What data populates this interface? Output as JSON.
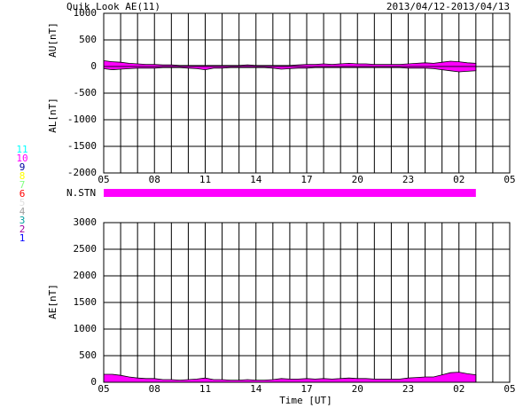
{
  "chart_data": [
    {
      "type": "area",
      "title": "Quik Look AE(11)",
      "date_range": "2013/04/12-2013/04/13",
      "x": [
        0,
        0.5,
        1,
        1.5,
        2,
        2.5,
        3,
        3.5,
        4,
        4.5,
        5,
        5.5,
        6,
        6.5,
        7,
        7.5,
        8,
        8.5,
        9,
        9.5,
        10,
        10.5,
        11,
        11.5,
        12,
        12.5,
        13,
        13.5,
        14,
        14.5,
        15,
        15.5,
        16,
        16.5,
        17,
        17.5,
        18,
        18.5,
        19,
        19.5,
        20,
        20.5,
        21,
        21.5,
        22
      ],
      "xlim": [
        0,
        24
      ],
      "xticks": [
        {
          "value": 0,
          "label": "05"
        },
        {
          "value": 3,
          "label": "08"
        },
        {
          "value": 6,
          "label": "11"
        },
        {
          "value": 9,
          "label": "14"
        },
        {
          "value": 12,
          "label": "17"
        },
        {
          "value": 15,
          "label": "20"
        },
        {
          "value": 18,
          "label": "23"
        },
        {
          "value": 21,
          "label": "02"
        },
        {
          "value": 24,
          "label": "05"
        }
      ],
      "xgrid": [
        0,
        1,
        2,
        3,
        4,
        5,
        6,
        7,
        8,
        9,
        10,
        11,
        12,
        13,
        14,
        15,
        16,
        17,
        18,
        19,
        20,
        21,
        22,
        23,
        24
      ],
      "ylim": [
        -2000,
        1000
      ],
      "yticks": [
        -2000,
        -1500,
        -1000,
        -500,
        0,
        500,
        1000
      ],
      "series": [
        {
          "name": "AU[nT]",
          "color": "#ff00ff",
          "values": [
            110,
            90,
            80,
            60,
            50,
            40,
            40,
            30,
            30,
            20,
            20,
            20,
            20,
            20,
            20,
            20,
            20,
            30,
            20,
            20,
            20,
            20,
            20,
            30,
            40,
            40,
            50,
            40,
            50,
            60,
            50,
            50,
            40,
            40,
            40,
            40,
            50,
            60,
            70,
            60,
            80,
            100,
            90,
            70,
            60
          ]
        },
        {
          "name": "AL[nT]",
          "color": "#ff00ff",
          "values": [
            -40,
            -60,
            -50,
            -40,
            -30,
            -30,
            -30,
            -20,
            -20,
            -20,
            -30,
            -40,
            -60,
            -30,
            -30,
            -20,
            -20,
            -20,
            -20,
            -20,
            -30,
            -50,
            -40,
            -30,
            -30,
            -20,
            -20,
            -20,
            -20,
            -20,
            -20,
            -20,
            -20,
            -20,
            -20,
            -20,
            -30,
            -30,
            -30,
            -40,
            -60,
            -80,
            -100,
            -90,
            -80
          ]
        }
      ],
      "station_count": {
        "label": "N.STN",
        "x": [
          0,
          22
        ],
        "value": 10
      },
      "legend": [
        {
          "value": 11,
          "color": "#00ffff"
        },
        {
          "value": 10,
          "color": "#ff00ff"
        },
        {
          "value": 9,
          "color": "#0000a0"
        },
        {
          "value": 8,
          "color": "#ffff00"
        },
        {
          "value": 7,
          "color": "#80ff80"
        },
        {
          "value": 6,
          "color": "#ff0000"
        },
        {
          "value": 5,
          "color": "#e0e0e0"
        },
        {
          "value": 4,
          "color": "#a0a0a0"
        },
        {
          "value": 3,
          "color": "#00a0a0"
        },
        {
          "value": 2,
          "color": "#a000a0"
        },
        {
          "value": 1,
          "color": "#0000ff"
        }
      ]
    },
    {
      "type": "area",
      "xlabel": "Time [UT]",
      "x": [
        0,
        0.5,
        1,
        1.5,
        2,
        2.5,
        3,
        3.5,
        4,
        4.5,
        5,
        5.5,
        6,
        6.5,
        7,
        7.5,
        8,
        8.5,
        9,
        9.5,
        10,
        10.5,
        11,
        11.5,
        12,
        12.5,
        13,
        13.5,
        14,
        14.5,
        15,
        15.5,
        16,
        16.5,
        17,
        17.5,
        18,
        18.5,
        19,
        19.5,
        20,
        20.5,
        21,
        21.5,
        22
      ],
      "xlim": [
        0,
        24
      ],
      "xticks": [
        {
          "value": 0,
          "label": "05"
        },
        {
          "value": 3,
          "label": "08"
        },
        {
          "value": 6,
          "label": "11"
        },
        {
          "value": 9,
          "label": "14"
        },
        {
          "value": 12,
          "label": "17"
        },
        {
          "value": 15,
          "label": "20"
        },
        {
          "value": 18,
          "label": "23"
        },
        {
          "value": 21,
          "label": "02"
        },
        {
          "value": 24,
          "label": "05"
        }
      ],
      "xgrid": [
        0,
        1,
        2,
        3,
        4,
        5,
        6,
        7,
        8,
        9,
        10,
        11,
        12,
        13,
        14,
        15,
        16,
        17,
        18,
        19,
        20,
        21,
        22,
        23,
        24
      ],
      "ylim": [
        0,
        3000
      ],
      "yticks": [
        0,
        500,
        1000,
        1500,
        2000,
        2500,
        3000
      ],
      "series": [
        {
          "name": "AE[nT]",
          "color": "#ff00ff",
          "values": [
            150,
            150,
            130,
            100,
            80,
            70,
            70,
            50,
            50,
            40,
            50,
            60,
            80,
            50,
            50,
            40,
            40,
            50,
            40,
            40,
            50,
            70,
            60,
            60,
            70,
            60,
            70,
            60,
            70,
            80,
            70,
            70,
            60,
            60,
            60,
            60,
            80,
            90,
            100,
            100,
            140,
            180,
            190,
            160,
            140
          ]
        }
      ]
    }
  ]
}
